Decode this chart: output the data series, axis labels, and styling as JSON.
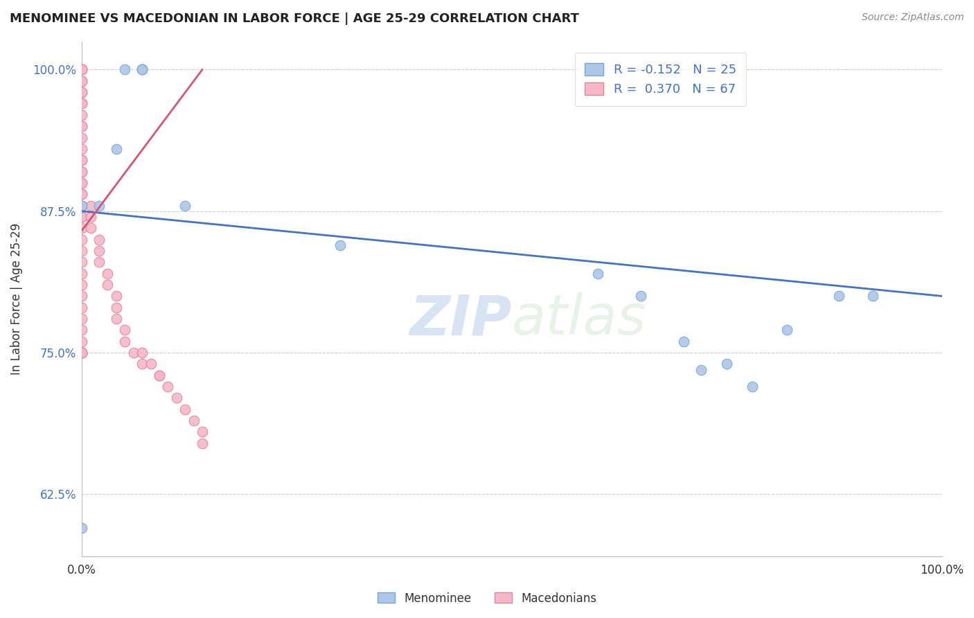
{
  "title": "MENOMINEE VS MACEDONIAN IN LABOR FORCE | AGE 25-29 CORRELATION CHART",
  "xlabel": "",
  "ylabel": "In Labor Force | Age 25-29",
  "source_text": "Source: ZipAtlas.com",
  "watermark_zip": "ZIP",
  "watermark_atlas": "atlas",
  "xlim": [
    0.0,
    1.0
  ],
  "ylim": [
    0.57,
    1.025
  ],
  "yticks": [
    0.625,
    0.75,
    0.875,
    1.0
  ],
  "ytick_labels": [
    "62.5%",
    "75.0%",
    "87.5%",
    "100.0%"
  ],
  "xticks": [
    0.0,
    1.0
  ],
  "xtick_labels": [
    "0.0%",
    "100.0%"
  ],
  "grid_color": "#cccccc",
  "background_color": "#ffffff",
  "menominee_color": "#aec6e8",
  "macedonian_color": "#f4b8c8",
  "menominee_edge": "#6fa8d6",
  "macedonian_edge": "#e87fa0",
  "trend_blue": "#4472c4",
  "trend_pink": "#d9536f",
  "menominee_x": [
    0.0,
    0.0,
    0.02,
    0.04,
    0.05,
    0.07,
    0.07,
    0.07,
    0.12,
    0.3,
    0.6,
    0.65,
    0.7,
    0.72,
    0.75,
    0.78,
    0.82,
    0.88,
    0.92
  ],
  "menominee_y": [
    0.595,
    0.88,
    0.88,
    0.93,
    1.0,
    1.0,
    1.0,
    1.0,
    0.88,
    0.845,
    0.82,
    0.8,
    0.76,
    0.735,
    0.74,
    0.72,
    0.77,
    0.8,
    0.8
  ],
  "macedonian_x": [
    0.0,
    0.0,
    0.0,
    0.0,
    0.0,
    0.0,
    0.0,
    0.0,
    0.0,
    0.0,
    0.0,
    0.0,
    0.0,
    0.0,
    0.0,
    0.0,
    0.0,
    0.0,
    0.0,
    0.0,
    0.0,
    0.0,
    0.0,
    0.0,
    0.0,
    0.0,
    0.0,
    0.0,
    0.0,
    0.0,
    0.0,
    0.0,
    0.0,
    0.0,
    0.0,
    0.0,
    0.0,
    0.0,
    0.0,
    0.0,
    0.0,
    0.0,
    0.01,
    0.01,
    0.01,
    0.02,
    0.02,
    0.02,
    0.03,
    0.03,
    0.04,
    0.04,
    0.04,
    0.05,
    0.05,
    0.06,
    0.07,
    0.07,
    0.08,
    0.09,
    0.09,
    0.1,
    0.11,
    0.12,
    0.13,
    0.14,
    0.14
  ],
  "macedonian_y": [
    1.0,
    1.0,
    1.0,
    1.0,
    0.99,
    0.99,
    0.98,
    0.98,
    0.97,
    0.97,
    0.96,
    0.95,
    0.95,
    0.94,
    0.93,
    0.92,
    0.92,
    0.91,
    0.91,
    0.9,
    0.9,
    0.89,
    0.89,
    0.88,
    0.88,
    0.87,
    0.87,
    0.86,
    0.85,
    0.84,
    0.83,
    0.82,
    0.81,
    0.8,
    0.79,
    0.78,
    0.77,
    0.76,
    0.75,
    0.75,
    0.75,
    0.75,
    0.88,
    0.87,
    0.86,
    0.85,
    0.84,
    0.83,
    0.82,
    0.81,
    0.8,
    0.79,
    0.78,
    0.77,
    0.76,
    0.75,
    0.75,
    0.74,
    0.74,
    0.73,
    0.73,
    0.72,
    0.71,
    0.7,
    0.69,
    0.68,
    0.67
  ],
  "men_trend_x": [
    0.0,
    1.0
  ],
  "men_trend_y": [
    0.875,
    0.8
  ],
  "mac_trend_x": [
    0.0,
    0.14
  ],
  "mac_trend_y": [
    0.858,
    1.0
  ]
}
